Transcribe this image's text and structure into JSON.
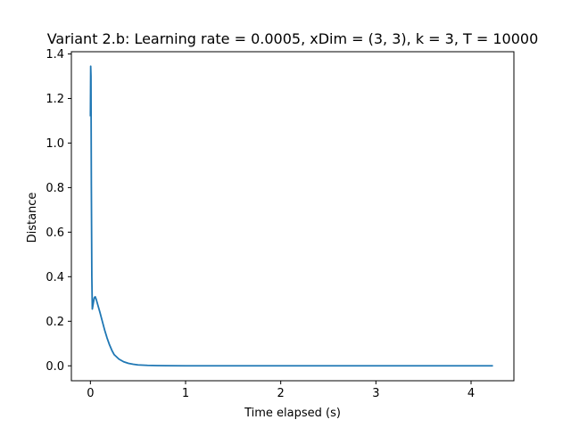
{
  "chart_data": {
    "type": "line",
    "title": "Variant 2.b: Learning rate = 0.0005, xDim = (3, 3), k = 3, T = 10000",
    "xlabel": "Time elapsed (s)",
    "ylabel": "Distance",
    "xlim": [
      -0.2,
      4.45
    ],
    "ylim": [
      -0.067,
      1.41
    ],
    "xticks": [
      0,
      1,
      2,
      3,
      4
    ],
    "xtick_labels": [
      "0",
      "1",
      "2",
      "3",
      "4"
    ],
    "yticks": [
      0.0,
      0.2,
      0.4,
      0.6,
      0.8,
      1.0,
      1.2,
      1.4
    ],
    "ytick_labels": [
      "0.0",
      "0.2",
      "0.4",
      "0.6",
      "0.8",
      "1.0",
      "1.2",
      "1.4"
    ],
    "grid": false,
    "series": [
      {
        "color": "#1f77b4",
        "x": [
          0.0,
          0.003,
          0.006,
          0.01,
          0.015,
          0.02,
          0.03,
          0.04,
          0.05,
          0.06,
          0.08,
          0.1,
          0.125,
          0.15,
          0.175,
          0.2,
          0.225,
          0.25,
          0.3,
          0.35,
          0.4,
          0.45,
          0.5,
          0.6,
          0.7,
          0.8,
          1.0,
          1.5,
          2.0,
          2.5,
          3.0,
          3.5,
          4.0,
          4.23
        ],
        "y": [
          1.12,
          1.345,
          1.3,
          0.8,
          0.4,
          0.255,
          0.28,
          0.305,
          0.31,
          0.3,
          0.27,
          0.24,
          0.2,
          0.16,
          0.125,
          0.095,
          0.07,
          0.05,
          0.03,
          0.018,
          0.011,
          0.007,
          0.004,
          0.002,
          0.001,
          0.0005,
          0.0,
          0.0,
          0.0,
          0.0,
          0.0,
          0.0,
          0.0,
          0.0
        ]
      }
    ]
  }
}
